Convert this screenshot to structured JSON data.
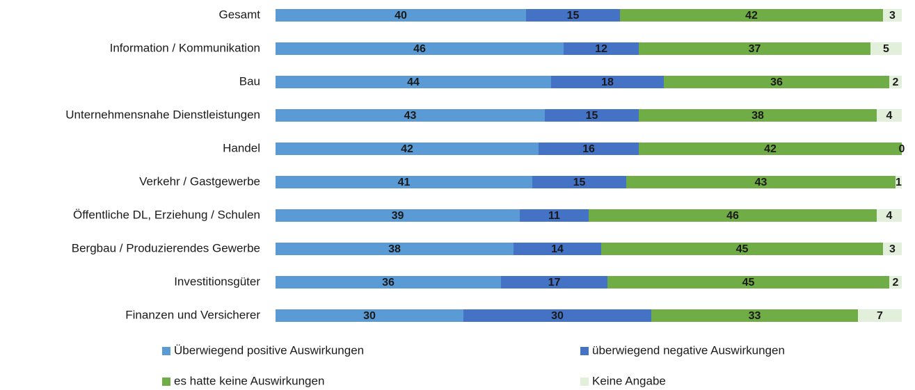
{
  "chart_data": {
    "type": "stacked-barh",
    "categories": [
      "Gesamt",
      "Information / Kommunikation",
      "Bau",
      "Unternehmensnahe Dienstleistungen",
      "Handel",
      "Verkehr / Gastgewerbe",
      "Öffentliche DL, Erziehung / Schulen",
      "Bergbau / Produzierendes Gewerbe",
      "Investitionsgüter",
      "Finanzen und Versicherer"
    ],
    "series": [
      {
        "name": "Überwiegend positive Auswirkungen",
        "color": "#5b9bd5",
        "values": [
          40,
          46,
          44,
          43,
          42,
          41,
          39,
          38,
          36,
          30
        ]
      },
      {
        "name": "überwiegend negative Auswirkungen",
        "color": "#4472c4",
        "values": [
          15,
          12,
          18,
          15,
          16,
          15,
          11,
          14,
          17,
          30
        ]
      },
      {
        "name": "es hatte keine Auswirkungen",
        "color": "#70ad47",
        "values": [
          42,
          37,
          36,
          38,
          42,
          43,
          46,
          45,
          45,
          33
        ]
      },
      {
        "name": "Keine Angabe",
        "color": "#e2efda",
        "values": [
          3,
          5,
          2,
          4,
          0,
          1,
          4,
          3,
          2,
          7
        ]
      }
    ],
    "xlim": [
      0,
      100
    ]
  }
}
